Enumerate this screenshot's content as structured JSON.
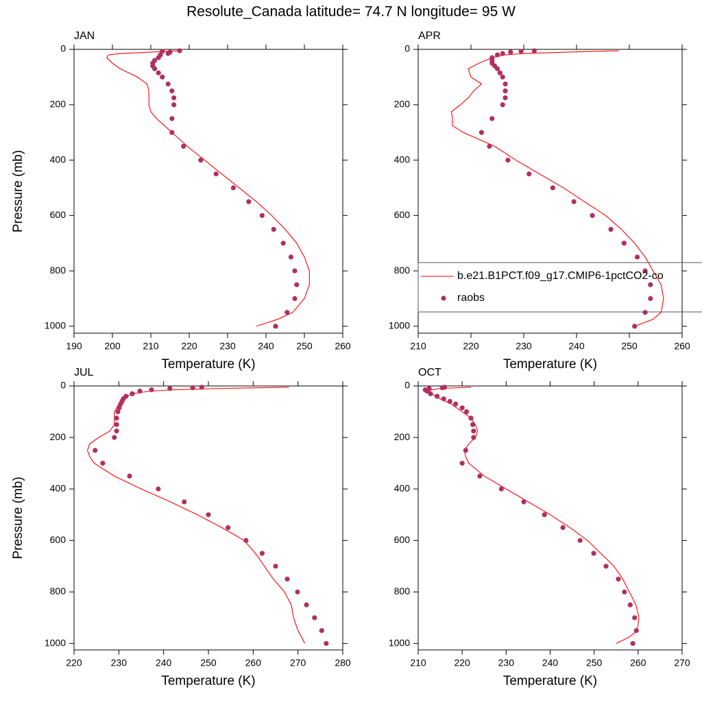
{
  "title": "Resolute_Canada  latitude= 74.7 N longitude= 95 W",
  "chart_data": [
    {
      "type": "line",
      "title": "JAN",
      "xlabel": "Temperature (K)",
      "ylabel": "Pressure (mb)",
      "xlim": [
        190,
        260
      ],
      "xticks": [
        190,
        200,
        210,
        220,
        230,
        240,
        250,
        260
      ],
      "ylim": [
        1025,
        0
      ],
      "yticks": [
        0,
        200,
        400,
        600,
        800,
        1000
      ],
      "legend": false,
      "series": [
        {
          "color": "#ff0000",
          "style": "line",
          "x": [
            237.5,
            243,
            247,
            250,
            251.3,
            251.3,
            250,
            248,
            245,
            241.5,
            237.5,
            233,
            228.5,
            224,
            219.5,
            215.5,
            213.5,
            211.5,
            210,
            209.5,
            209.5,
            209.5,
            209,
            206.5,
            202,
            200,
            198.5,
            199,
            202,
            210,
            217
          ],
          "y": [
            1000,
            975,
            950,
            900,
            850,
            800,
            750,
            700,
            650,
            600,
            550,
            500,
            450,
            400,
            350,
            300,
            275,
            250,
            225,
            200,
            175,
            150,
            125,
            100,
            70,
            50,
            30,
            20,
            15,
            10,
            5
          ]
        },
        {
          "color": "#b03060",
          "style": "markers",
          "x": [
            242.5,
            245.5,
            247.5,
            248,
            247.5,
            246.5,
            244.5,
            242,
            239,
            235.5,
            231.5,
            227,
            223,
            218.5,
            215.5,
            215.5,
            216,
            216,
            215.5,
            214.5,
            213,
            212,
            211,
            210.5,
            210.5,
            211,
            212,
            212.5,
            214.5,
            215,
            213,
            217.5
          ],
          "y": [
            1000,
            950,
            900,
            850,
            800,
            750,
            700,
            650,
            600,
            550,
            500,
            450,
            400,
            350,
            300,
            250,
            200,
            175,
            150,
            125,
            100,
            85,
            70,
            60,
            50,
            40,
            30,
            20,
            15,
            10,
            7,
            5
          ]
        }
      ]
    },
    {
      "type": "line",
      "title": "APR",
      "xlabel": "Temperature (K)",
      "xlim": [
        210,
        260
      ],
      "xticks": [
        210,
        220,
        230,
        240,
        250,
        260
      ],
      "ylim": [
        1025,
        0
      ],
      "yticks": [
        0,
        200,
        400,
        600,
        800,
        1000
      ],
      "legend": true,
      "series": [
        {
          "name": "b.e21.B1PCT.f09_g17.CMIP6-1pctCO2-co",
          "color": "#ff0000",
          "style": "line",
          "x": [
            251,
            254.5,
            256,
            256.5,
            256,
            254.5,
            253,
            251,
            248.5,
            245.5,
            241.5,
            237.5,
            233,
            228.5,
            224.5,
            218.5,
            216.5,
            216.5,
            216.3,
            218,
            219.5,
            220.5,
            222,
            220,
            219.5,
            221.5,
            224,
            226.5,
            230,
            238,
            248
          ],
          "y": [
            1000,
            975,
            950,
            900,
            850,
            800,
            750,
            700,
            650,
            600,
            550,
            500,
            450,
            400,
            350,
            300,
            275,
            250,
            225,
            200,
            175,
            150,
            125,
            100,
            70,
            50,
            30,
            20,
            15,
            10,
            5
          ]
        },
        {
          "name": "raobs",
          "color": "#b03060",
          "style": "markers",
          "x": [
            251,
            253,
            254,
            254,
            253,
            251.5,
            249,
            246.5,
            243,
            239.5,
            235.5,
            231,
            227,
            223.5,
            222,
            224,
            226,
            226.5,
            226.5,
            226.5,
            226,
            225.5,
            225,
            224.5,
            224,
            224,
            224,
            225,
            226,
            227.5,
            229.5,
            232
          ],
          "y": [
            1000,
            950,
            900,
            850,
            800,
            750,
            700,
            650,
            600,
            550,
            500,
            450,
            400,
            350,
            300,
            250,
            200,
            175,
            150,
            125,
            100,
            85,
            70,
            60,
            50,
            40,
            30,
            20,
            15,
            10,
            7,
            5
          ]
        }
      ]
    },
    {
      "type": "line",
      "title": "JUL",
      "xlabel": "Temperature (K)",
      "ylabel": "Pressure (mb)",
      "xlim": [
        220,
        280
      ],
      "xticks": [
        220,
        230,
        240,
        250,
        260,
        270,
        280
      ],
      "ylim": [
        1025,
        0
      ],
      "yticks": [
        0,
        200,
        400,
        600,
        800,
        1000
      ],
      "legend": false,
      "series": [
        {
          "color": "#ff0000",
          "style": "line",
          "x": [
            271.5,
            270.8,
            270,
            269,
            268.5,
            267,
            264.5,
            262.5,
            260.5,
            258,
            253,
            247.5,
            241.5,
            235,
            229,
            224.5,
            223.5,
            223,
            223.5,
            225.5,
            228,
            229,
            229,
            229,
            230,
            231,
            233,
            237,
            242,
            252,
            268
          ],
          "y": [
            1000,
            975,
            950,
            900,
            850,
            800,
            750,
            700,
            650,
            600,
            550,
            500,
            450,
            400,
            350,
            300,
            275,
            250,
            225,
            200,
            175,
            150,
            125,
            100,
            70,
            50,
            30,
            20,
            15,
            10,
            5
          ]
        },
        {
          "color": "#b03060",
          "style": "markers",
          "x": [
            276.3,
            275.3,
            273.7,
            271.9,
            269.9,
            267.6,
            265,
            262,
            258.4,
            254.4,
            250,
            244.6,
            238.8,
            232.4,
            226.4,
            224.7,
            229,
            229.5,
            229.5,
            229.5,
            229.8,
            230.1,
            230.4,
            230.7,
            231,
            231.6,
            233,
            234.7,
            237.3,
            241.4,
            246.5,
            248.5
          ],
          "y": [
            1000,
            950,
            900,
            850,
            800,
            750,
            700,
            650,
            600,
            550,
            500,
            450,
            400,
            350,
            300,
            250,
            200,
            175,
            150,
            125,
            100,
            85,
            70,
            60,
            50,
            40,
            30,
            20,
            15,
            10,
            7,
            5
          ]
        }
      ]
    },
    {
      "type": "line",
      "title": "OCT",
      "xlabel": "Temperature (K)",
      "xlim": [
        210,
        270
      ],
      "xticks": [
        210,
        220,
        230,
        240,
        250,
        260,
        270
      ],
      "ylim": [
        1025,
        0
      ],
      "yticks": [
        0,
        200,
        400,
        600,
        800,
        1000
      ],
      "legend": false,
      "series": [
        {
          "color": "#ff0000",
          "style": "line",
          "x": [
            255,
            258,
            259.8,
            260.2,
            259.5,
            258,
            256.5,
            254.5,
            251.5,
            248.5,
            244.5,
            240,
            235,
            230,
            225,
            221.5,
            220.8,
            220.5,
            221.5,
            223,
            223.5,
            223,
            222,
            220,
            217.5,
            215,
            213,
            212.5,
            213,
            215,
            222
          ],
          "y": [
            1000,
            975,
            950,
            900,
            850,
            800,
            750,
            700,
            650,
            600,
            550,
            500,
            450,
            400,
            350,
            300,
            275,
            250,
            225,
            200,
            175,
            150,
            125,
            100,
            70,
            50,
            30,
            20,
            15,
            10,
            5
          ]
        },
        {
          "color": "#b03060",
          "style": "markers",
          "x": [
            258.8,
            259.6,
            259.2,
            258.2,
            256.9,
            255.5,
            252.7,
            249.9,
            246.8,
            242.9,
            238.7,
            234,
            228.9,
            224,
            220,
            220.8,
            222.6,
            222.6,
            222.4,
            222,
            221,
            220,
            218.5,
            217.2,
            215.8,
            214.3,
            212.8,
            212,
            211.6,
            212.5,
            215.5,
            216
          ],
          "y": [
            1000,
            950,
            900,
            850,
            800,
            750,
            700,
            650,
            600,
            550,
            500,
            450,
            400,
            350,
            300,
            250,
            200,
            175,
            150,
            125,
            100,
            85,
            70,
            60,
            50,
            40,
            30,
            20,
            15,
            10,
            7,
            5
          ]
        }
      ]
    }
  ]
}
